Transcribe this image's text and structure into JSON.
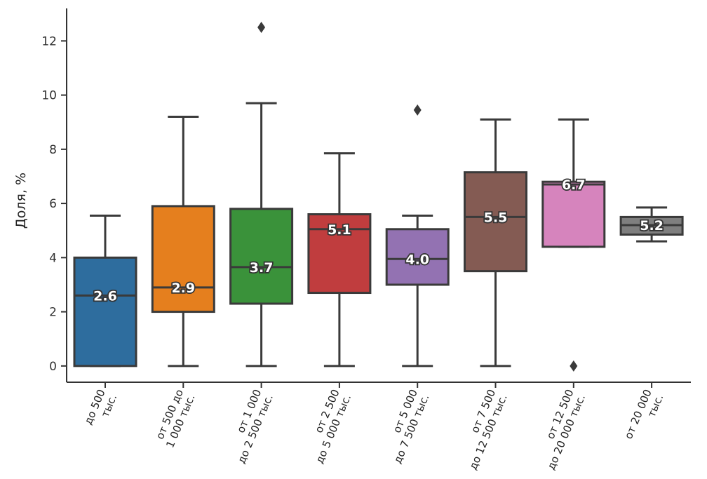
{
  "chart_data": {
    "type": "boxplot",
    "ylabel": "Доля, %",
    "xlabel": "",
    "ylim": [
      -0.6,
      13.2
    ],
    "yticks": [
      "0",
      "2",
      "4",
      "6",
      "8",
      "10",
      "12"
    ],
    "grid": false,
    "categories": [
      {
        "lines": [
          "до 500",
          "тыс."
        ]
      },
      {
        "lines": [
          "от 500 до",
          "1 000 тыс."
        ]
      },
      {
        "lines": [
          "от 1 000",
          "до 2 500 тыс."
        ]
      },
      {
        "lines": [
          "от 2 500",
          "до 5 000 тыс."
        ]
      },
      {
        "lines": [
          "от 5 000",
          "до 7 500 тыс."
        ]
      },
      {
        "lines": [
          "от 7 500",
          "до 12 500 тыс."
        ]
      },
      {
        "lines": [
          "от 12 500",
          "до 20 000 тыс."
        ]
      },
      {
        "lines": [
          "от 20 000",
          "тыс."
        ]
      }
    ],
    "boxes": [
      {
        "min": 0,
        "q1": 0,
        "median": 2.6,
        "q3": 4.0,
        "max": 5.55,
        "outliers": [],
        "label": "2.6",
        "color": "#2e6d9e"
      },
      {
        "min": 0,
        "q1": 2.0,
        "median": 2.9,
        "q3": 5.9,
        "max": 9.2,
        "outliers": [],
        "label": "2.9",
        "color": "#e57f1e"
      },
      {
        "min": 0,
        "q1": 2.3,
        "median": 3.65,
        "q3": 5.8,
        "max": 9.7,
        "outliers": [
          12.5
        ],
        "label": "3.7",
        "color": "#3a923a"
      },
      {
        "min": 0,
        "q1": 2.7,
        "median": 5.05,
        "q3": 5.6,
        "max": 7.85,
        "outliers": [],
        "label": "5.1",
        "color": "#c03d3e"
      },
      {
        "min": 0,
        "q1": 3.0,
        "median": 3.95,
        "q3": 5.05,
        "max": 5.55,
        "outliers": [
          9.45
        ],
        "label": "4.0",
        "color": "#9372b2"
      },
      {
        "min": 0,
        "q1": 3.5,
        "median": 5.5,
        "q3": 7.15,
        "max": 9.1,
        "outliers": [],
        "label": "5.5",
        "color": "#845b53"
      },
      {
        "min": 4.4,
        "q1": 4.4,
        "median": 6.7,
        "q3": 6.8,
        "max": 9.1,
        "outliers": [
          0
        ],
        "label": "6.7",
        "color": "#d684bd"
      },
      {
        "min": 4.6,
        "q1": 4.85,
        "median": 5.2,
        "q3": 5.5,
        "max": 5.85,
        "outliers": [],
        "label": "5.2",
        "color": "#7f7f7f"
      }
    ]
  }
}
